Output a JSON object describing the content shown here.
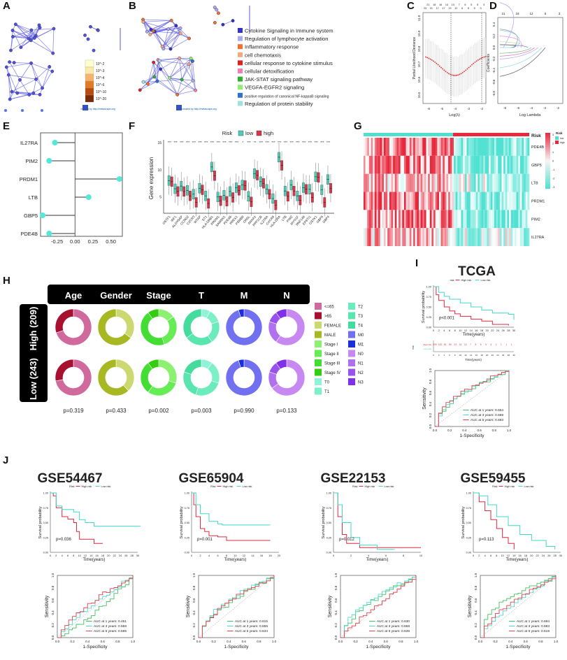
{
  "panel_labels": {
    "A": "A",
    "B": "B",
    "C": "C",
    "D": "D",
    "E": "E",
    "F": "F",
    "G": "G",
    "H": "H",
    "I": "I",
    "J": "J"
  },
  "chart_data": {
    "A": {
      "type": "network",
      "scale_labels": [
        "10^-2",
        "10^-3",
        "10^-4",
        "10^-6",
        "10^-10",
        "10^-20"
      ],
      "scale_colors": [
        "#ffffcc",
        "#fde9a8",
        "#f6b26b",
        "#e07b24",
        "#b84a0e",
        "#7a2a05"
      ],
      "credit": "created by http://metascape.org",
      "node_color": "#4040d8"
    },
    "B": {
      "type": "network",
      "credit": "created by http://metascape.org",
      "legend": [
        {
          "label": "Cytokine Signaling in Immune system",
          "color": "#3333cc"
        },
        {
          "label": "Regulation of lymphocyte activation",
          "color": "#a9a9ee"
        },
        {
          "label": "Inflammatory response",
          "color": "#f07030"
        },
        {
          "label": "cell chemotaxis",
          "color": "#f4a880"
        },
        {
          "label": "cellular response to cytokine stimulus",
          "color": "#e02020"
        },
        {
          "label": "cellular detoxification",
          "color": "#f080b0"
        },
        {
          "label": "JAK-STAT signaling pathway",
          "color": "#30b030"
        },
        {
          "label": "VEGFA-EGFR2 signaling",
          "color": "#90ee70"
        },
        {
          "label": "positive regulation of canonical NF-kappaB signaling",
          "color": "#3070d0"
        },
        {
          "label": "Regulation of protein stability",
          "color": "#a0e0e0"
        }
      ]
    },
    "C": {
      "type": "line",
      "xlabel": "Log(λ)",
      "ylabel": "Partial Likelihood Deviance",
      "xticks": [
        "-6",
        "-5",
        "-4",
        "-3",
        "-2"
      ],
      "yticks": [
        "10.5",
        "10.6",
        "10.7",
        "10.8",
        "10.9",
        "11.0"
      ],
      "top_ticks": [
        "23",
        "21",
        "21",
        "18",
        "17",
        "16",
        "17",
        "14",
        "13",
        "13",
        "12",
        "7",
        "6",
        "6",
        "5",
        "5",
        "5",
        "5",
        "3",
        "3"
      ],
      "min_log_lambda": -4.1
    },
    "D": {
      "type": "line",
      "xlabel": "Log Lambda",
      "ylabel": "Coefficients",
      "xticks": [
        "-6",
        "-5",
        "-4",
        "-3",
        "-2"
      ],
      "yticks": [
        "0.4",
        "0.2",
        "0.0",
        "-0.2",
        "-0.4",
        "-0.6",
        "-0.8"
      ],
      "top_ticks": [
        "21",
        "18",
        "12",
        "5",
        "3"
      ]
    },
    "E": {
      "type": "lollipop",
      "categories": [
        "IL27RA",
        "PIM2",
        "PRDM1",
        "LTB",
        "GBP5",
        "PDE4B"
      ],
      "values": [
        -0.28,
        -0.36,
        0.62,
        0.19,
        -0.45,
        -0.36
      ],
      "xticks": [
        "-0.25",
        "0.00",
        "0.25",
        "0.50"
      ],
      "xlim": [
        -0.48,
        0.66
      ],
      "color": "#55e8d8"
    },
    "F": {
      "type": "boxplot",
      "legend_title": "Risk",
      "series": [
        {
          "name": "low",
          "color": "#4ecdb4"
        },
        {
          "name": "high",
          "color": "#d9344a"
        }
      ],
      "ylabel": "Gene expression",
      "yticks": [
        "5",
        "10",
        "15"
      ],
      "ylim": [
        2,
        15.5
      ],
      "categories": [
        "OSTF1",
        "IRF1",
        "ALOX5AP",
        "CCND2",
        "CXCR3",
        "WTAP",
        "ST1",
        "HLA-DRB1",
        "PRDM1",
        "SAMSN1",
        "PDE4B",
        "PREX1",
        "PSMB9",
        "OASL",
        "ANXA1",
        "PPP1CB",
        "IL27RA",
        "CXCR6",
        "HLA-DRA",
        "LTB",
        "PIM2",
        "MYO1F",
        "RNF149",
        "EPSTI1",
        "GSTK1",
        "GBP5",
        "GBP4"
      ],
      "significance": [
        "***",
        "***",
        "***",
        "***",
        "***",
        "***",
        "***",
        "***",
        "***",
        "***",
        "***",
        "***",
        "*",
        "***",
        "**",
        "***",
        "***",
        "***",
        "***",
        "***",
        "***",
        "***",
        "***",
        "***",
        "***",
        "***",
        "***"
      ],
      "low_median": [
        8.0,
        6.5,
        7.0,
        6.2,
        5.5,
        6.6,
        5.2,
        10.5,
        5.0,
        5.3,
        6.0,
        6.7,
        7.2,
        5.1,
        9.3,
        7.8,
        6.4,
        4.7,
        12.3,
        6.1,
        7.2,
        5.2,
        6.7,
        6.4,
        8.7,
        6.3,
        8.2
      ],
      "high_median": [
        7.8,
        6.0,
        6.0,
        5.2,
        4.0,
        6.3,
        3.8,
        8.9,
        4.3,
        4.2,
        4.9,
        6.2,
        7.1,
        4.1,
        9.0,
        7.5,
        5.5,
        3.5,
        10.8,
        5.1,
        6.1,
        4.4,
        6.4,
        4.9,
        8.6,
        4.0,
        6.6
      ]
    },
    "G": {
      "type": "heatmap",
      "annotation_title": "Risk",
      "rows": [
        "PDE4B",
        "GBP5",
        "LTB",
        "PRDM1",
        "PIM2",
        "IL27RA"
      ],
      "groups": [
        {
          "name": "low",
          "color": "#4fe0d0"
        },
        {
          "name": "high",
          "color": "#e8283c"
        }
      ],
      "scale": [
        "3",
        "2",
        "1",
        "0",
        "-1",
        "-2",
        "-3"
      ]
    },
    "H": {
      "type": "pie",
      "columns": [
        "Age",
        "Gender",
        "Stage",
        "T",
        "M",
        "N"
      ],
      "rows": [
        "High\n(209)",
        "Low\n(243)"
      ],
      "row_labels": [
        "High (209)",
        "Low (243)"
      ],
      "pvalues": [
        "p=0.319",
        "p=0.433",
        "p=0.002",
        "p=0.003",
        "p=0.990",
        "p=0.133"
      ],
      "legend": [
        {
          "label": "<=65",
          "color": "#d06a9c"
        },
        {
          "label": ">65",
          "color": "#a81030"
        },
        {
          "label": "FEMALE",
          "color": "#ccd870"
        },
        {
          "label": "MALE",
          "color": "#a8b822"
        },
        {
          "label": "Stage I",
          "color": "#8cf070"
        },
        {
          "label": "Stage II",
          "color": "#66ec55"
        },
        {
          "label": "Stage III",
          "color": "#44dd33"
        },
        {
          "label": "Stage IV",
          "color": "#33cc10"
        },
        {
          "label": "T0",
          "color": "#90f2d8"
        },
        {
          "label": "T1",
          "color": "#7ef0c8"
        },
        {
          "label": "T2",
          "color": "#6cecbc"
        },
        {
          "label": "T3",
          "color": "#58e6ae"
        },
        {
          "label": "T4",
          "color": "#44dc9c"
        },
        {
          "label": "M0",
          "color": "#7070f0"
        },
        {
          "label": "M1",
          "color": "#1a2ee0"
        },
        {
          "label": "N0",
          "color": "#c888f2"
        },
        {
          "label": "N1",
          "color": "#b070f0"
        },
        {
          "label": "N2",
          "color": "#9a52ee"
        },
        {
          "label": "N3",
          "color": "#8030e8"
        }
      ],
      "proportions": {
        "Age": {
          "groups": [
            "<=65",
            ">65"
          ],
          "High": [
            0.7,
            0.3
          ],
          "Low": [
            0.72,
            0.28
          ]
        },
        "Gender": {
          "groups": [
            "FEMALE",
            "MALE"
          ],
          "High": [
            0.35,
            0.65
          ],
          "Low": [
            0.38,
            0.62
          ]
        },
        "Stage": {
          "groups": [
            "Stage I",
            "Stage II",
            "Stage III",
            "Stage IV"
          ],
          "High": [
            0.15,
            0.3,
            0.45,
            0.1
          ],
          "Low": [
            0.3,
            0.3,
            0.3,
            0.1
          ]
        },
        "T": {
          "groups": [
            "T0",
            "T1",
            "T2",
            "T3",
            "T4"
          ],
          "High": [
            0.08,
            0.12,
            0.2,
            0.25,
            0.35
          ],
          "Low": [
            0.1,
            0.2,
            0.25,
            0.25,
            0.2
          ]
        },
        "M": {
          "groups": [
            "M0",
            "M1"
          ],
          "High": [
            0.95,
            0.05
          ],
          "Low": [
            0.95,
            0.05
          ]
        },
        "N": {
          "groups": [
            "N0",
            "N1",
            "N2",
            "N3"
          ],
          "High": [
            0.6,
            0.2,
            0.1,
            0.1
          ],
          "Low": [
            0.65,
            0.15,
            0.1,
            0.1
          ]
        }
      }
    },
    "I": {
      "type": "km+roc",
      "title": "TCGA",
      "legend_title": "risk",
      "legend": [
        "High risk",
        "Low risk"
      ],
      "pvalue": "p<0.001",
      "km_ylabel": "Survival probability",
      "km_xlabel": "Time(years)",
      "km_yticks": [
        "0.00",
        "0.25",
        "0.50",
        "0.75",
        "1.00"
      ],
      "km_xmax": 30,
      "km_xstep": 2,
      "high": [
        [
          0,
          1
        ],
        [
          1,
          0.8
        ],
        [
          2,
          0.66
        ],
        [
          4,
          0.5
        ],
        [
          6,
          0.4
        ],
        [
          8,
          0.33
        ],
        [
          10,
          0.27
        ],
        [
          14,
          0.2
        ],
        [
          18,
          0.15
        ],
        [
          22,
          0.07
        ],
        [
          28,
          0.04
        ]
      ],
      "low": [
        [
          0,
          1
        ],
        [
          2,
          0.86
        ],
        [
          4,
          0.76
        ],
        [
          6,
          0.69
        ],
        [
          10,
          0.6
        ],
        [
          14,
          0.5
        ],
        [
          18,
          0.42
        ],
        [
          22,
          0.35
        ],
        [
          28,
          0.32
        ],
        [
          30,
          0.18
        ]
      ],
      "risk_table_label": "risk",
      "risk_table_rows": [
        "High risk",
        "Low risk"
      ],
      "risk_table_high": [
        "209",
        "133",
        "81",
        "50",
        "23",
        "15",
        "10",
        "7",
        "5",
        "5",
        "5",
        "3",
        "1",
        "1",
        "1",
        "1"
      ],
      "roc_xlabel": "1-Specificity",
      "roc_ylabel": "Sensitivity",
      "roc_ticks": [
        "0.0",
        "0.2",
        "0.4",
        "0.6",
        "0.8",
        "1.0"
      ],
      "auc": [
        {
          "label": "AUC at 1 years: 0.654",
          "value": 0.654,
          "color": "#44c060"
        },
        {
          "label": "AUC at 3 years: 0.659",
          "value": 0.659,
          "color": "#50d8c8"
        },
        {
          "label": "AUC at 5 years: 0.683",
          "value": 0.683,
          "color": "#e0404a"
        }
      ]
    },
    "J": [
      {
        "title": "GSE54467",
        "legend_title": "Risk",
        "legend": [
          "High risk",
          "Low risk"
        ],
        "pvalue": "p=0.036",
        "xmax": 30,
        "xstep": 2,
        "high": [
          [
            0,
            1
          ],
          [
            1,
            0.95
          ],
          [
            2,
            0.75
          ],
          [
            4,
            0.6
          ],
          [
            6,
            0.56
          ],
          [
            8,
            0.5
          ],
          [
            9,
            0.35
          ],
          [
            10,
            0.22
          ],
          [
            14,
            0.22
          ],
          [
            15,
            0.15
          ],
          [
            18,
            0.15
          ]
        ],
        "low": [
          [
            0,
            1
          ],
          [
            2,
            0.78
          ],
          [
            4,
            0.72
          ],
          [
            8,
            0.68
          ],
          [
            10,
            0.55
          ],
          [
            12,
            0.5
          ],
          [
            15,
            0.44
          ],
          [
            31,
            0.44
          ]
        ],
        "auc": [
          {
            "label": "AUC at 1 years: 0.451",
            "value": 0.451
          },
          {
            "label": "AUC at 3 years: 0.559",
            "value": 0.559
          },
          {
            "label": "AUC at 5 years: 0.595",
            "value": 0.595
          }
        ]
      },
      {
        "title": "GSE65904",
        "legend_title": "Risk",
        "legend": [
          "High risk",
          "Low risk"
        ],
        "pvalue": "p=0.001",
        "xmax": 20,
        "xstep": 2,
        "high": [
          [
            0,
            1
          ],
          [
            0.5,
            0.8
          ],
          [
            1,
            0.6
          ],
          [
            2,
            0.4
          ],
          [
            3,
            0.35
          ],
          [
            4,
            0.28
          ],
          [
            6,
            0.26
          ],
          [
            8,
            0.2
          ],
          [
            18,
            0.2
          ]
        ],
        "low": [
          [
            0,
            1
          ],
          [
            1,
            0.8
          ],
          [
            2,
            0.65
          ],
          [
            4,
            0.52
          ],
          [
            6,
            0.48
          ],
          [
            7,
            0.46
          ],
          [
            18,
            0.46
          ]
        ],
        "auc": [
          {
            "label": "AUC at 1 years: 0.615",
            "value": 0.615
          },
          {
            "label": "AUC at 3 years: 0.656",
            "value": 0.656
          },
          {
            "label": "AUC at 5 years: 0.634",
            "value": 0.634
          }
        ]
      },
      {
        "title": "GSE22153",
        "legend_title": "Risk",
        "legend": [
          "High risk",
          "Low risk"
        ],
        "pvalue": "p=0.012",
        "xmax": 10,
        "xstep": 2,
        "high": [
          [
            0,
            1
          ],
          [
            0.5,
            0.6
          ],
          [
            1,
            0.3
          ],
          [
            1.5,
            0.15
          ],
          [
            3,
            0.08
          ],
          [
            10,
            0.08
          ]
        ],
        "low": [
          [
            0,
            1
          ],
          [
            0.5,
            0.8
          ],
          [
            1,
            0.5
          ],
          [
            2,
            0.25
          ],
          [
            3,
            0.12
          ],
          [
            5,
            0.05
          ],
          [
            7,
            0.05
          ]
        ],
        "auc": [
          {
            "label": "AUC at 1 years: 0.630",
            "value": 0.63
          },
          {
            "label": "AUC at 3 years: 0.658",
            "value": 0.658
          },
          {
            "label": "AUC at 5 years: 0.539",
            "value": 0.539
          }
        ]
      },
      {
        "title": "GSE59455",
        "legend_title": "Risk",
        "legend": [
          "High risk",
          "Low risk"
        ],
        "pvalue": "p=0.113",
        "xmax": 30,
        "xstep": 2,
        "high": [
          [
            0,
            1
          ],
          [
            2,
            0.85
          ],
          [
            4,
            0.7
          ],
          [
            6,
            0.55
          ],
          [
            8,
            0.4
          ],
          [
            10,
            0.25
          ],
          [
            12,
            0.15
          ],
          [
            14,
            0.05
          ]
        ],
        "low": [
          [
            0,
            1
          ],
          [
            2,
            0.95
          ],
          [
            5,
            0.8
          ],
          [
            8,
            0.6
          ],
          [
            12,
            0.45
          ],
          [
            16,
            0.3
          ],
          [
            20,
            0.2
          ],
          [
            25,
            0.1
          ],
          [
            28,
            0.05
          ]
        ],
        "auc": [
          {
            "label": "AUC at 1 years: 0.694",
            "value": 0.694
          },
          {
            "label": "AUC at 3 years: 0.583",
            "value": 0.583
          },
          {
            "label": "AUC at 5 years: 0.619",
            "value": 0.619
          }
        ]
      }
    ],
    "km_common": {
      "ylabel": "Survival probability",
      "xlabel": "Time(years)",
      "yticks": [
        "0.00",
        "0.25",
        "0.50",
        "0.75",
        "1.00"
      ]
    },
    "roc_common": {
      "xlabel": "1-Specificity",
      "ylabel": "Sensitivity",
      "ticks": [
        "0.0",
        "0.2",
        "0.4",
        "0.6",
        "0.8",
        "1.0"
      ],
      "colors": [
        "#44c060",
        "#50d8c8",
        "#e0404a"
      ]
    },
    "colors": {
      "high": "#e0283c",
      "low": "#40d8c8"
    }
  }
}
